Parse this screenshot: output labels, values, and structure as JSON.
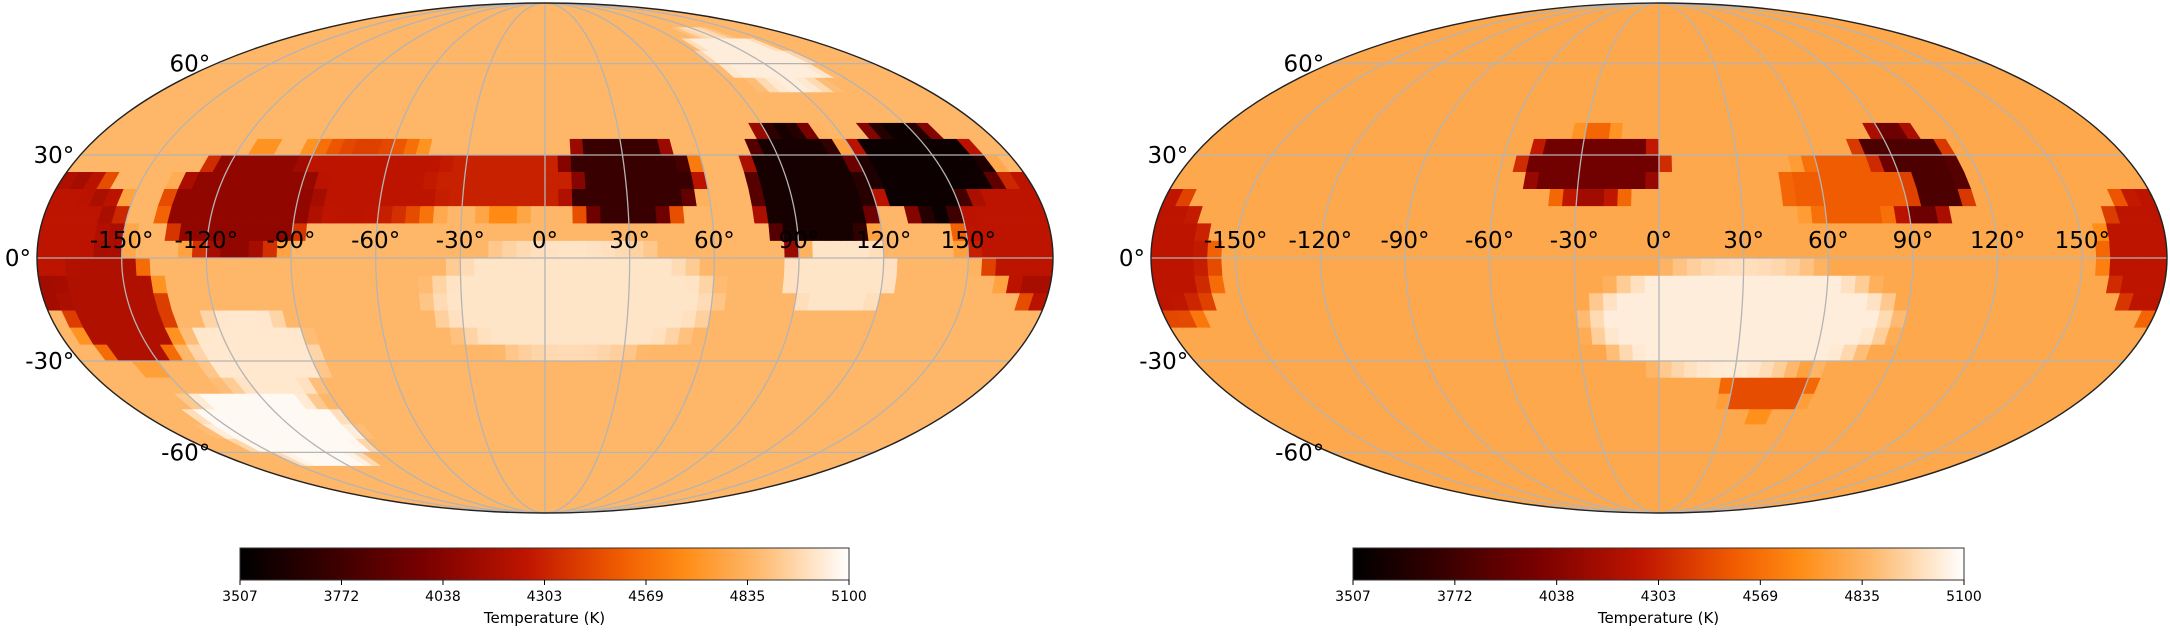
{
  "chart_data": [
    {
      "type": "heatmap",
      "projection": "mollweide",
      "grid": true,
      "lat_ticks": [
        "60°",
        "30°",
        "0°",
        "-30°",
        "-60°"
      ],
      "lon_ticks": [
        "-150°",
        "-120°",
        "-90°",
        "-60°",
        "-30°",
        "0°",
        "30°",
        "60°",
        "90°",
        "120°",
        "150°"
      ],
      "value_range": [
        3507,
        5100
      ],
      "background_temperature": 4850,
      "colorbar": {
        "ticks": [
          "3507",
          "3772",
          "4038",
          "4303",
          "4569",
          "4835",
          "5100"
        ],
        "label": "Temperature (K)"
      },
      "spots": [
        {
          "lon": 30,
          "lat": 23,
          "rlon": 30,
          "rlat": 14,
          "temperature": 3740
        },
        {
          "lon": 98,
          "lat": 20,
          "rlon": 24,
          "rlat": 22,
          "temperature": 3600
        },
        {
          "lon": 145,
          "lat": 25,
          "rlon": 28,
          "rlat": 16,
          "temperature": 3560
        },
        {
          "lon": -70,
          "lat": 22,
          "rlon": 55,
          "rlat": 12,
          "temperature": 4250
        },
        {
          "lon": -110,
          "lat": 16,
          "rlon": 30,
          "rlat": 17,
          "temperature": 4080
        },
        {
          "lon": -15,
          "lat": 22,
          "rlon": 30,
          "rlat": 10,
          "temperature": 4300
        },
        {
          "lon": -175,
          "lat": 5,
          "rlon": 28,
          "rlat": 22,
          "temperature": 4150
        },
        {
          "lon": 175,
          "lat": 8,
          "rlon": 30,
          "rlat": 16,
          "temperature": 4250
        },
        {
          "lon": -155,
          "lat": -15,
          "rlon": 20,
          "rlat": 18,
          "temperature": 4200
        },
        {
          "lon": -125,
          "lat": -52,
          "rlon": 38,
          "rlat": 15,
          "temperature": 5080
        },
        {
          "lon": -110,
          "lat": -28,
          "rlon": 25,
          "rlat": 14,
          "temperature": 5020
        },
        {
          "lon": 10,
          "lat": -12,
          "rlon": 55,
          "rlat": 18,
          "temperature": 5010
        },
        {
          "lon": 120,
          "lat": 62,
          "rlon": 30,
          "rlat": 12,
          "temperature": 5040
        },
        {
          "lon": 105,
          "lat": -5,
          "rlon": 22,
          "rlat": 12,
          "temperature": 5010
        }
      ]
    },
    {
      "type": "heatmap",
      "projection": "mollweide",
      "grid": true,
      "lat_ticks": [
        "60°",
        "30°",
        "0°",
        "-30°",
        "-60°"
      ],
      "lon_ticks": [
        "-150°",
        "-120°",
        "-90°",
        "-60°",
        "-30°",
        "0°",
        "30°",
        "60°",
        "90°",
        "120°",
        "150°"
      ],
      "value_range": [
        3507,
        5100
      ],
      "background_temperature": 4790,
      "colorbar": {
        "ticks": [
          "3507",
          "3772",
          "4038",
          "4303",
          "4569",
          "4835",
          "5100"
        ],
        "label": "Temperature (K)"
      },
      "spots": [
        {
          "lon": -25,
          "lat": 27,
          "rlon": 30,
          "rlat": 11,
          "temperature": 3960
        },
        {
          "lon": 95,
          "lat": 25,
          "rlon": 22,
          "rlat": 15,
          "temperature": 3820
        },
        {
          "lon": 70,
          "lat": 20,
          "rlon": 28,
          "rlat": 10,
          "temperature": 4500
        },
        {
          "lon": -175,
          "lat": -2,
          "rlon": 20,
          "rlat": 18,
          "temperature": 4330
        },
        {
          "lon": 178,
          "lat": 2,
          "rlon": 22,
          "rlat": 20,
          "temperature": 4250
        },
        {
          "lon": 45,
          "lat": -38,
          "rlon": 20,
          "rlat": 10,
          "temperature": 4450
        },
        {
          "lon": 30,
          "lat": -18,
          "rlon": 60,
          "rlat": 18,
          "temperature": 5040
        }
      ]
    }
  ]
}
